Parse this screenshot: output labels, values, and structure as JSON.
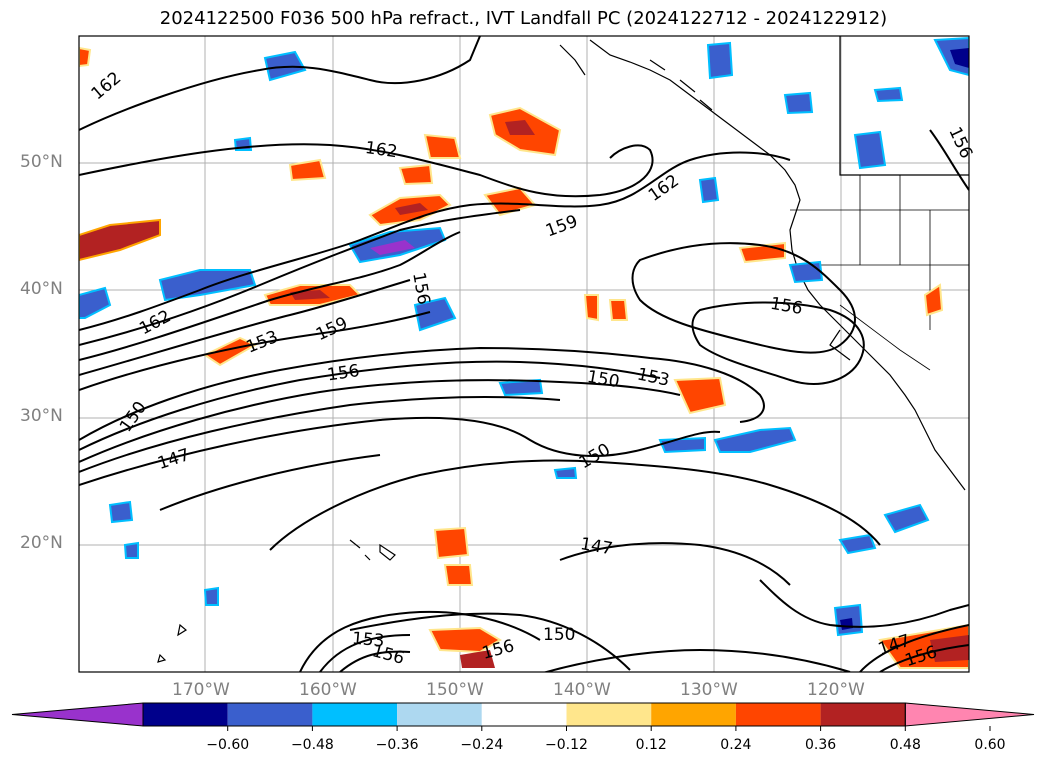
{
  "title": "2024122500 F036 500 hPa refract., IVT Landfall PC (2024122712 - 2024122912)",
  "map": {
    "lat_labels": [
      "50°N",
      "40°N",
      "30°N",
      "20°N"
    ],
    "lon_labels": [
      "170°W",
      "160°W",
      "150°W",
      "140°W",
      "130°W",
      "120°W"
    ],
    "contour_labels": [
      "162",
      "162",
      "162",
      "159",
      "156",
      "162",
      "159",
      "156",
      "153",
      "150",
      "147",
      "150",
      "153",
      "156",
      "150",
      "147",
      "153",
      "156",
      "156",
      "150",
      "147",
      "156",
      "156"
    ]
  },
  "colorbar": {
    "colors": [
      "#9932cc",
      "#00008b",
      "#3a5fcd",
      "#00bfff",
      "#add8f0",
      "#ffffff",
      "#ffe68c",
      "#ffa500",
      "#ff4500",
      "#b22222",
      "#ff85b0"
    ],
    "ticks": [
      "−0.60",
      "−0.48",
      "−0.36",
      "−0.24",
      "−0.12",
      "0.12",
      "0.24",
      "0.36",
      "0.48",
      "0.60"
    ]
  }
}
